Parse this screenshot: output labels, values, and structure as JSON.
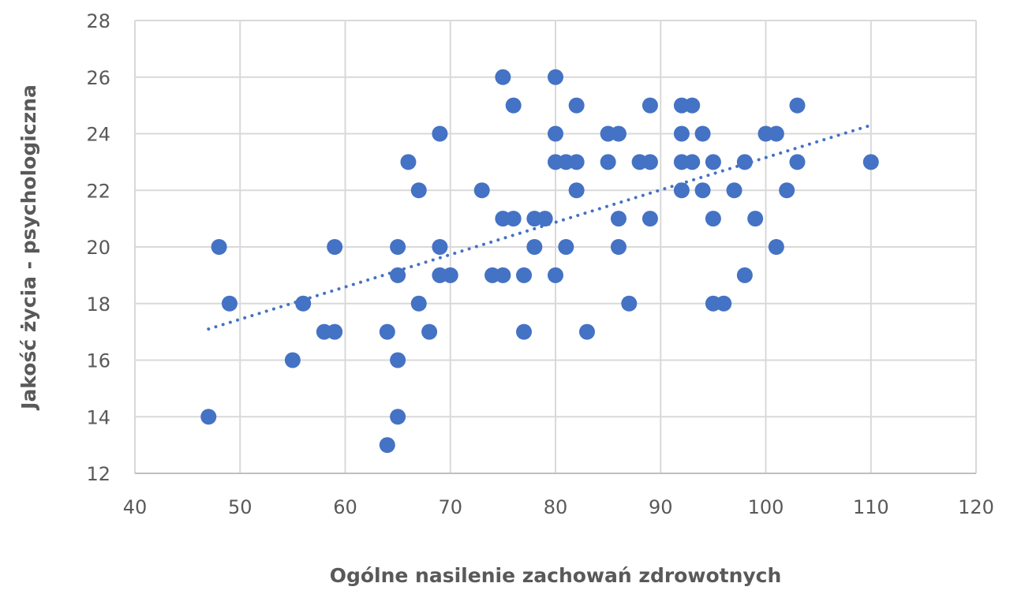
{
  "chart_data": {
    "type": "scatter",
    "title": "",
    "xlabel": "Ogólne nasilenie zachowań zdrowotnych",
    "ylabel": "Jakość życia - psychologiczna",
    "xlim": [
      40,
      120
    ],
    "ylim": [
      12,
      28
    ],
    "xticks": [
      40,
      50,
      60,
      70,
      80,
      90,
      100,
      110,
      120
    ],
    "yticks": [
      12,
      14,
      16,
      18,
      20,
      22,
      24,
      26,
      28
    ],
    "grid": true,
    "legend": null,
    "marker_color": "#4472C4",
    "trendline": {
      "type": "linear",
      "style": "dotted",
      "x": [
        47,
        110
      ],
      "y": [
        17.1,
        24.3
      ]
    },
    "series": [
      {
        "name": "Jakość życia - psychologiczna",
        "points": [
          [
            47,
            14
          ],
          [
            48,
            20
          ],
          [
            49,
            18
          ],
          [
            55,
            16
          ],
          [
            56,
            18
          ],
          [
            58,
            17
          ],
          [
            59,
            17
          ],
          [
            59,
            20
          ],
          [
            64,
            17
          ],
          [
            64,
            13
          ],
          [
            65,
            20
          ],
          [
            65,
            19
          ],
          [
            65,
            16
          ],
          [
            65,
            14
          ],
          [
            66,
            23
          ],
          [
            67,
            22
          ],
          [
            67,
            18
          ],
          [
            68,
            17
          ],
          [
            69,
            24
          ],
          [
            69,
            20
          ],
          [
            69,
            19
          ],
          [
            70,
            19
          ],
          [
            73,
            22
          ],
          [
            74,
            19
          ],
          [
            75,
            26
          ],
          [
            75,
            21
          ],
          [
            75,
            19
          ],
          [
            76,
            25
          ],
          [
            76,
            21
          ],
          [
            77,
            19
          ],
          [
            77,
            17
          ],
          [
            78,
            21
          ],
          [
            78,
            20
          ],
          [
            79,
            21
          ],
          [
            80,
            26
          ],
          [
            80,
            24
          ],
          [
            80,
            23
          ],
          [
            80,
            19
          ],
          [
            81,
            23
          ],
          [
            81,
            20
          ],
          [
            82,
            25
          ],
          [
            82,
            23
          ],
          [
            82,
            22
          ],
          [
            83,
            17
          ],
          [
            85,
            24
          ],
          [
            85,
            23
          ],
          [
            86,
            24
          ],
          [
            86,
            21
          ],
          [
            86,
            20
          ],
          [
            87,
            18
          ],
          [
            88,
            23
          ],
          [
            89,
            25
          ],
          [
            89,
            23
          ],
          [
            89,
            21
          ],
          [
            92,
            25
          ],
          [
            92,
            24
          ],
          [
            92,
            23
          ],
          [
            92,
            22
          ],
          [
            93,
            25
          ],
          [
            93,
            23
          ],
          [
            94,
            24
          ],
          [
            94,
            22
          ],
          [
            95,
            23
          ],
          [
            95,
            21
          ],
          [
            95,
            18
          ],
          [
            96,
            18
          ],
          [
            97,
            22
          ],
          [
            98,
            23
          ],
          [
            98,
            19
          ],
          [
            99,
            21
          ],
          [
            100,
            24
          ],
          [
            101,
            24
          ],
          [
            101,
            20
          ],
          [
            102,
            22
          ],
          [
            103,
            25
          ],
          [
            103,
            23
          ],
          [
            110,
            23
          ]
        ]
      }
    ]
  }
}
